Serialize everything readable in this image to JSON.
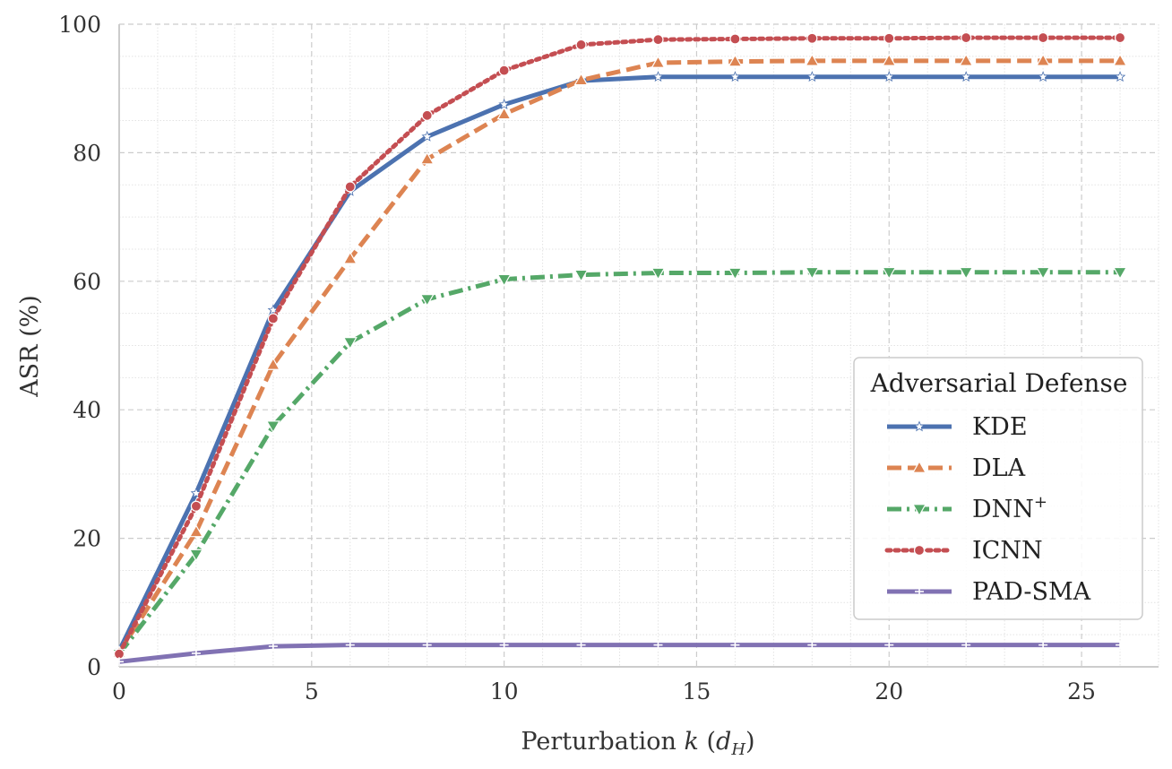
{
  "chart_data": {
    "type": "line",
    "xlabel": "Perturbation k (d_H)",
    "ylabel": "ASR (%)",
    "xlim": [
      0,
      27
    ],
    "ylim": [
      0,
      100
    ],
    "xticks": [
      0,
      5,
      10,
      15,
      20,
      25
    ],
    "yticks": [
      0,
      20,
      40,
      60,
      80,
      100
    ],
    "grid": true,
    "legend": {
      "title": "Adversarial Defense",
      "placement": "center-right"
    },
    "x": [
      0,
      2,
      4,
      6,
      8,
      10,
      12,
      14,
      16,
      18,
      20,
      22,
      24,
      26
    ],
    "series": [
      {
        "name": "KDE",
        "label_main": "KDE",
        "label_sup": "",
        "color": "#4c72b0",
        "dash": "solid",
        "marker": "star",
        "values": [
          2.5,
          27,
          55.5,
          74,
          82.5,
          87.5,
          91.2,
          91.8,
          91.8,
          91.8,
          91.8,
          91.8,
          91.8,
          91.8
        ]
      },
      {
        "name": "DLA",
        "label_main": "DLA",
        "label_sup": "",
        "color": "#dd8452",
        "dash": "dashed",
        "marker": "triangle-up",
        "values": [
          2.2,
          21,
          47,
          63.5,
          79,
          86,
          91.3,
          94,
          94.2,
          94.3,
          94.3,
          94.3,
          94.3,
          94.3
        ]
      },
      {
        "name": "DNN+",
        "label_main": "DNN",
        "label_sup": "+",
        "color": "#55a868",
        "dash": "dashdot",
        "marker": "triangle-down",
        "values": [
          2.0,
          17.5,
          37.5,
          50.5,
          57.2,
          60.3,
          61,
          61.3,
          61.3,
          61.4,
          61.4,
          61.4,
          61.4,
          61.4
        ]
      },
      {
        "name": "ICNN",
        "label_main": "ICNN",
        "label_sup": "",
        "color": "#c44e52",
        "dash": "dotted",
        "marker": "circle",
        "values": [
          2.0,
          25,
          54.2,
          74.7,
          85.8,
          92.8,
          96.8,
          97.6,
          97.7,
          97.8,
          97.8,
          97.9,
          97.9,
          97.9
        ]
      },
      {
        "name": "PAD-SMA",
        "label_main": "PAD-SMA",
        "label_sup": "",
        "color": "#8172b3",
        "dash": "solid",
        "marker": "plus",
        "values": [
          0.8,
          2.1,
          3.2,
          3.4,
          3.4,
          3.4,
          3.4,
          3.4,
          3.4,
          3.4,
          3.4,
          3.4,
          3.4,
          3.4
        ]
      }
    ]
  }
}
